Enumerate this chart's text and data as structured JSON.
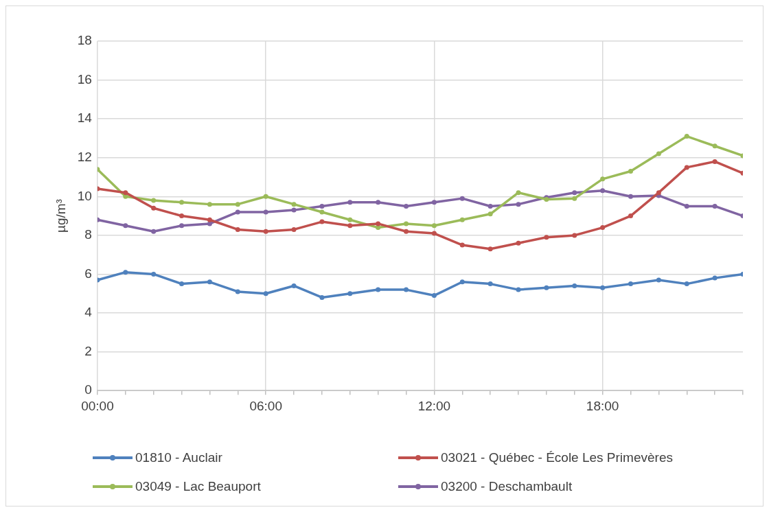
{
  "chart_data": {
    "type": "line",
    "ylabel": "µg/m³",
    "x": [
      0,
      1,
      2,
      3,
      4,
      5,
      6,
      7,
      8,
      9,
      10,
      11,
      12,
      13,
      14,
      15,
      16,
      17,
      18,
      19,
      20,
      21,
      22,
      23
    ],
    "xlim": [
      0,
      23
    ],
    "xticks": [
      {
        "value": 0,
        "label": "00:00"
      },
      {
        "value": 1,
        "label": null
      },
      {
        "value": 2,
        "label": null
      },
      {
        "value": 3,
        "label": null
      },
      {
        "value": 4,
        "label": null
      },
      {
        "value": 5,
        "label": null
      },
      {
        "value": 6,
        "label": "06:00"
      },
      {
        "value": 7,
        "label": null
      },
      {
        "value": 8,
        "label": null
      },
      {
        "value": 9,
        "label": null
      },
      {
        "value": 10,
        "label": null
      },
      {
        "value": 11,
        "label": null
      },
      {
        "value": 12,
        "label": "12:00"
      },
      {
        "value": 13,
        "label": null
      },
      {
        "value": 14,
        "label": null
      },
      {
        "value": 15,
        "label": null
      },
      {
        "value": 16,
        "label": null
      },
      {
        "value": 17,
        "label": null
      },
      {
        "value": 18,
        "label": "18:00"
      },
      {
        "value": 19,
        "label": null
      },
      {
        "value": 20,
        "label": null
      },
      {
        "value": 21,
        "label": null
      },
      {
        "value": 22,
        "label": null
      },
      {
        "value": 23,
        "label": null
      }
    ],
    "ylim": [
      0,
      18
    ],
    "yticks": [
      0,
      2,
      4,
      6,
      8,
      10,
      12,
      14,
      16,
      18
    ],
    "grid": true,
    "legend": "bottom",
    "marker": "circle",
    "line_style": "solid",
    "series": [
      {
        "name": "01810 - Auclair",
        "color": "#4f81bd",
        "values": [
          5.7,
          6.1,
          6.0,
          5.5,
          5.6,
          5.1,
          5.0,
          5.4,
          4.8,
          5.0,
          5.2,
          5.2,
          4.9,
          5.6,
          5.5,
          5.2,
          5.3,
          5.4,
          5.3,
          5.5,
          5.7,
          5.5,
          5.8,
          6.0
        ]
      },
      {
        "name": "03021 - Québec - École Les Primevères",
        "color": "#c0504d",
        "values": [
          10.4,
          10.2,
          9.4,
          9.0,
          8.8,
          8.3,
          8.2,
          8.3,
          8.7,
          8.5,
          8.6,
          8.2,
          8.1,
          7.5,
          7.3,
          7.6,
          7.9,
          8.0,
          8.4,
          9.0,
          10.2,
          11.5,
          11.8,
          11.2
        ]
      },
      {
        "name": "03049 - Lac Beauport",
        "color": "#9bbb59",
        "values": [
          11.4,
          10.0,
          9.8,
          9.7,
          9.6,
          9.6,
          10.0,
          9.6,
          9.2,
          8.8,
          8.4,
          8.6,
          8.5,
          8.8,
          9.1,
          10.2,
          9.85,
          9.9,
          10.9,
          11.3,
          12.2,
          13.1,
          12.6,
          12.1
        ]
      },
      {
        "name": "03200 - Deschambault",
        "color": "#8064a2",
        "values": [
          8.8,
          8.5,
          8.2,
          8.5,
          8.6,
          9.2,
          9.2,
          9.3,
          9.5,
          9.7,
          9.7,
          9.5,
          9.7,
          9.9,
          9.5,
          9.6,
          9.95,
          10.2,
          10.3,
          10.0,
          10.05,
          9.5,
          9.5,
          9.0
        ]
      }
    ]
  }
}
